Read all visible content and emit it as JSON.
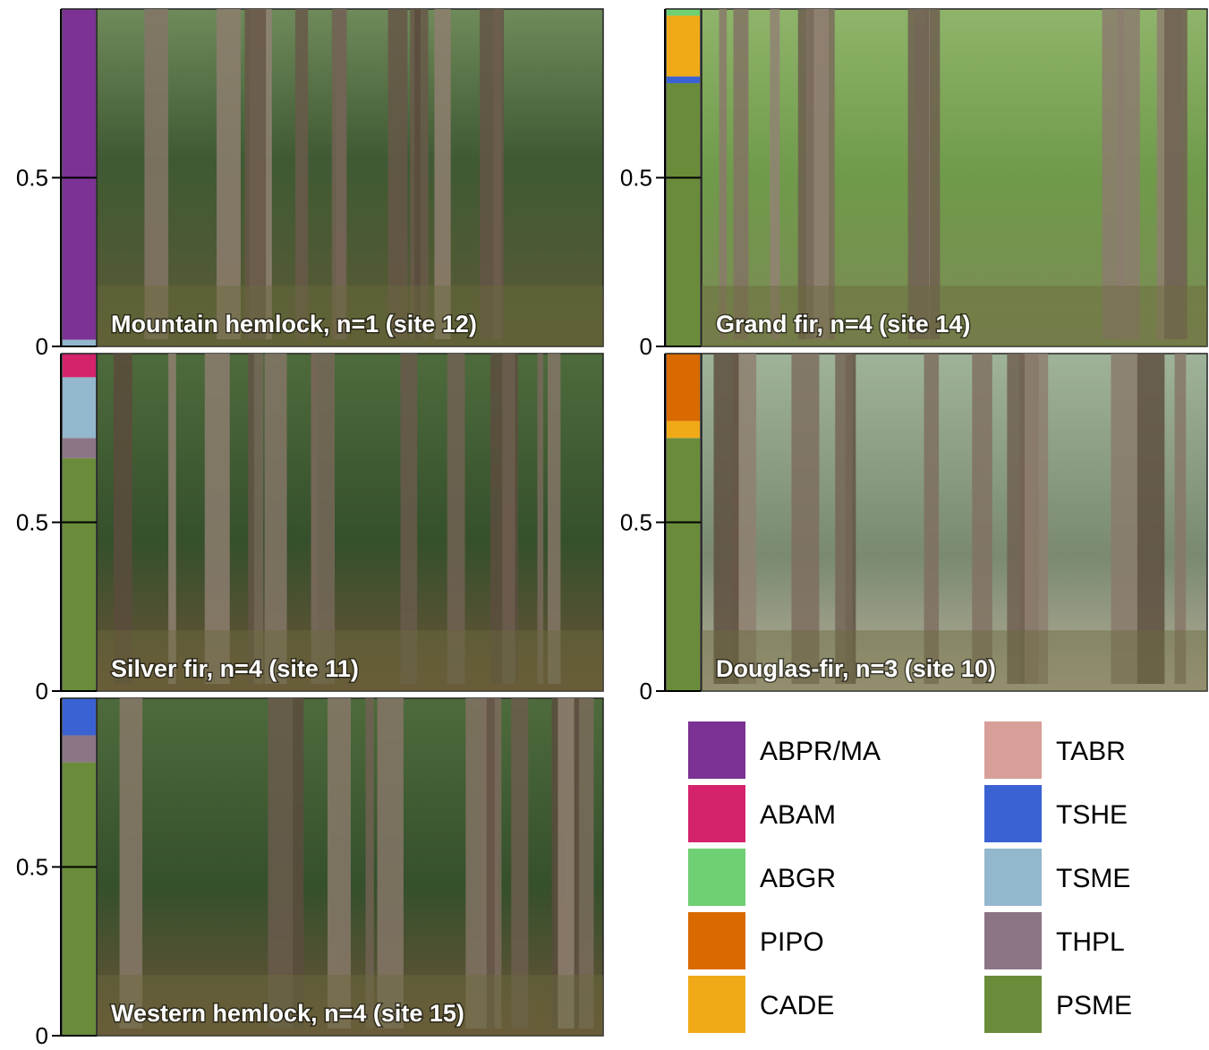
{
  "colors": {
    "ABPR/MA": "#7B3294",
    "ABAM": "#D4226B",
    "ABGR": "#6FCF73",
    "PIPO": "#D86A00",
    "CADE": "#F0AA17",
    "TABR": "#D79F98",
    "TSHE": "#3A62D2",
    "TSME": "#93B7CC",
    "THPL": "#8B7584",
    "PSME": "#6A8C3A"
  },
  "chart_data": [
    {
      "type": "bar",
      "caption": "Mountain hemlock, n=1 (site 12)",
      "photo": "forest photo",
      "y_ticks": [
        "0",
        "0.5"
      ],
      "ylim": [
        0,
        1
      ],
      "stack": [
        {
          "species": "TSME",
          "value": 0.02
        },
        {
          "species": "ABPR/MA",
          "value": 0.98
        }
      ]
    },
    {
      "type": "bar",
      "caption": "Grand fir, n=4 (site 14)",
      "photo": "forest photo",
      "y_ticks": [
        "0",
        "0.5"
      ],
      "ylim": [
        0,
        1
      ],
      "stack": [
        {
          "species": "PSME",
          "value": 0.78
        },
        {
          "species": "TSHE",
          "value": 0.02
        },
        {
          "species": "CADE",
          "value": 0.18
        },
        {
          "species": "ABGR",
          "value": 0.02
        }
      ]
    },
    {
      "type": "bar",
      "caption": "Silver fir, n=4 (site 11)",
      "photo": "forest photo",
      "y_ticks": [
        "0",
        "0.5"
      ],
      "ylim": [
        0,
        1
      ],
      "stack": [
        {
          "species": "PSME",
          "value": 0.69
        },
        {
          "species": "THPL",
          "value": 0.06
        },
        {
          "species": "TSME",
          "value": 0.18
        },
        {
          "species": "ABAM",
          "value": 0.07
        }
      ]
    },
    {
      "type": "bar",
      "caption": "Douglas-fir, n=3 (site 10)",
      "photo": "forest photo",
      "y_ticks": [
        "0",
        "0.5"
      ],
      "ylim": [
        0,
        1
      ],
      "stack": [
        {
          "species": "PSME",
          "value": 0.75
        },
        {
          "species": "CADE",
          "value": 0.05
        },
        {
          "species": "PIPO",
          "value": 0.2
        }
      ]
    },
    {
      "type": "bar",
      "caption": "Western hemlock, n=4 (site 15)",
      "photo": "forest photo",
      "y_ticks": [
        "0",
        "0.5"
      ],
      "ylim": [
        0,
        1
      ],
      "stack": [
        {
          "species": "PSME",
          "value": 0.81
        },
        {
          "species": "THPL",
          "value": 0.08
        },
        {
          "species": "TSHE",
          "value": 0.11
        }
      ]
    }
  ],
  "legend": [
    {
      "label": "ABPR/MA"
    },
    {
      "label": "ABAM"
    },
    {
      "label": "ABGR"
    },
    {
      "label": "PIPO"
    },
    {
      "label": "CADE"
    },
    {
      "label": "TABR"
    },
    {
      "label": "TSHE"
    },
    {
      "label": "TSME"
    },
    {
      "label": "THPL"
    },
    {
      "label": "PSME"
    }
  ]
}
